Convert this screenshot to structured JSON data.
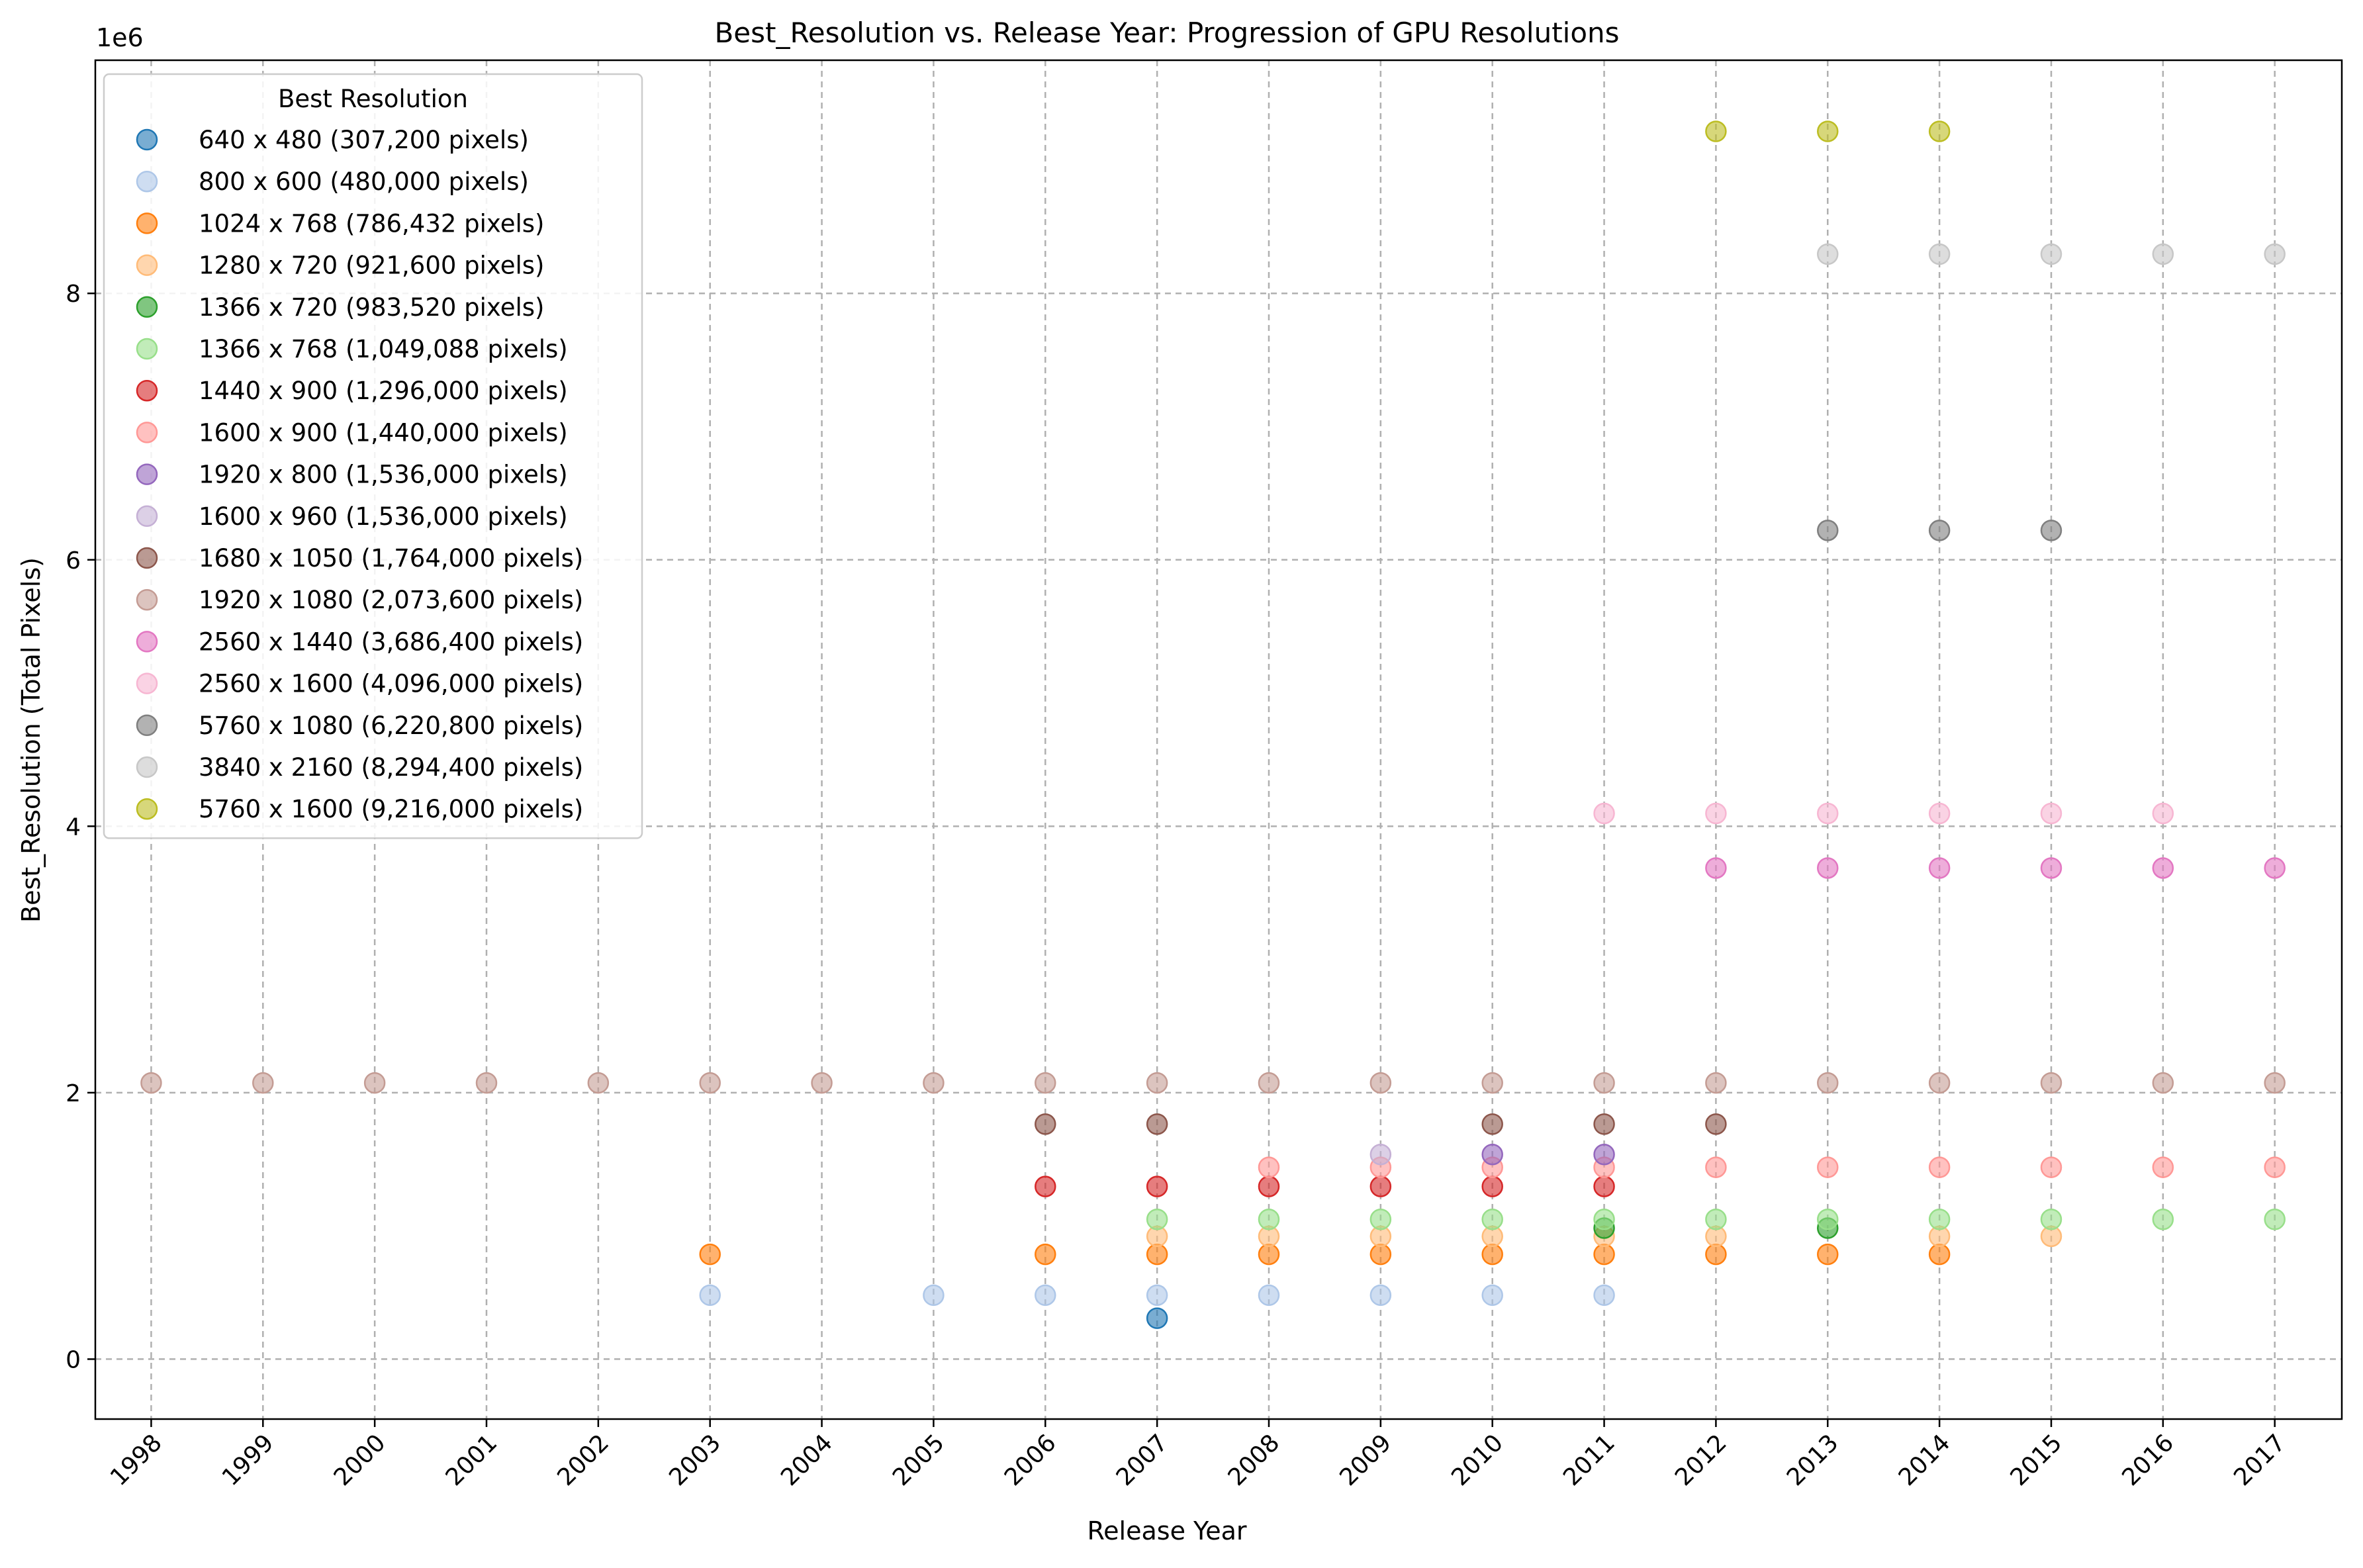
{
  "chart_data": {
    "type": "scatter",
    "title": "Best_Resolution vs. Release Year: Progression of GPU Resolutions",
    "xlabel": "Release Year",
    "ylabel": "Best_Resolution (Total Pixels)",
    "y_offset_label": "1e6",
    "x_ticks": [
      "1998",
      "1999",
      "2000",
      "2001",
      "2002",
      "2003",
      "2004",
      "2005",
      "2006",
      "2007",
      "2008",
      "2009",
      "2010",
      "2011",
      "2012",
      "2013",
      "2014",
      "2015",
      "2016",
      "2017"
    ],
    "y_ticks": [
      "0",
      "2",
      "4",
      "6",
      "8"
    ],
    "y_tick_values": [
      0,
      2000000,
      4000000,
      6000000,
      8000000
    ],
    "xlim": [
      1997.5,
      2017.6
    ],
    "ylim": [
      -450000,
      9750000
    ],
    "grid": true,
    "legend": {
      "title": "Best Resolution",
      "position": "upper-left"
    },
    "series": [
      {
        "name": "640 x 480 (307,200 pixels)",
        "value": 307200,
        "color": "#1f77b4",
        "x": [
          2007
        ]
      },
      {
        "name": "800 x 600 (480,000 pixels)",
        "value": 480000,
        "color": "#aec7e8",
        "x": [
          2003,
          2005,
          2006,
          2007,
          2008,
          2009,
          2010,
          2011
        ]
      },
      {
        "name": "1024 x 768 (786,432 pixels)",
        "value": 786432,
        "color": "#ff7f0e",
        "x": [
          2003,
          2006,
          2007,
          2008,
          2009,
          2010,
          2011,
          2012,
          2013,
          2014
        ]
      },
      {
        "name": "1280 x 720 (921,600 pixels)",
        "value": 921600,
        "color": "#ffbb78",
        "x": [
          2007,
          2008,
          2009,
          2010,
          2011,
          2012,
          2014,
          2015
        ]
      },
      {
        "name": "1366 x 720 (983,520 pixels)",
        "value": 983520,
        "color": "#2ca02c",
        "x": [
          2011,
          2013
        ]
      },
      {
        "name": "1366 x 768 (1,049,088 pixels)",
        "value": 1049088,
        "color": "#98df8a",
        "x": [
          2007,
          2008,
          2009,
          2010,
          2011,
          2012,
          2013,
          2014,
          2015,
          2016,
          2017
        ]
      },
      {
        "name": "1440 x 900 (1,296,000 pixels)",
        "value": 1296000,
        "color": "#d62728",
        "x": [
          2006,
          2007,
          2008,
          2009,
          2010,
          2011
        ]
      },
      {
        "name": "1600 x 900 (1,440,000 pixels)",
        "value": 1440000,
        "color": "#ff9896",
        "x": [
          2008,
          2009,
          2010,
          2011,
          2012,
          2013,
          2014,
          2015,
          2016,
          2017
        ]
      },
      {
        "name": "1920 x 800 (1,536,000 pixels)",
        "value": 1536000,
        "color": "#9467bd",
        "x": [
          2010,
          2011
        ]
      },
      {
        "name": "1600 x 960 (1,536,000 pixels)",
        "value": 1536000,
        "color": "#c5b0d5",
        "x": [
          2009
        ]
      },
      {
        "name": "1680 x 1050 (1,764,000 pixels)",
        "value": 1764000,
        "color": "#8c564b",
        "x": [
          2006,
          2007,
          2010,
          2011,
          2012
        ]
      },
      {
        "name": "1920 x 1080 (2,073,600 pixels)",
        "value": 2073600,
        "color": "#c49c94",
        "x": [
          1998,
          1999,
          2000,
          2001,
          2002,
          2003,
          2004,
          2005,
          2006,
          2007,
          2008,
          2009,
          2010,
          2011,
          2012,
          2013,
          2014,
          2015,
          2016,
          2017
        ]
      },
      {
        "name": "2560 x 1440 (3,686,400 pixels)",
        "value": 3686400,
        "color": "#e377c2",
        "x": [
          2012,
          2013,
          2014,
          2015,
          2016,
          2017
        ]
      },
      {
        "name": "2560 x 1600 (4,096,000 pixels)",
        "value": 4096000,
        "color": "#f7b6d2",
        "x": [
          2011,
          2012,
          2013,
          2014,
          2015,
          2016
        ]
      },
      {
        "name": "5760 x 1080 (6,220,800 pixels)",
        "value": 6220800,
        "color": "#7f7f7f",
        "x": [
          2013,
          2014,
          2015
        ]
      },
      {
        "name": "3840 x 2160 (8,294,400 pixels)",
        "value": 8294400,
        "color": "#c7c7c7",
        "x": [
          2013,
          2014,
          2015,
          2016,
          2017
        ]
      },
      {
        "name": "5760 x 1600 (9,216,000 pixels)",
        "value": 9216000,
        "color": "#bcbd22",
        "x": [
          2012,
          2013,
          2014
        ]
      }
    ]
  }
}
